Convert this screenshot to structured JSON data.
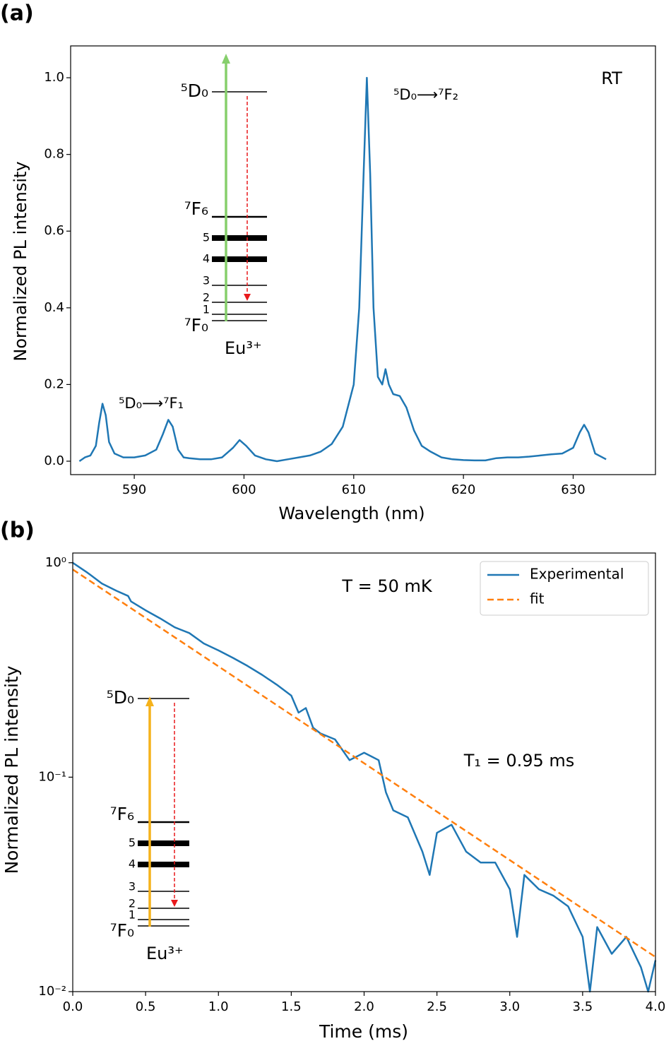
{
  "chart_data": [
    {
      "type": "line",
      "label": "(a)",
      "xlabel": "Wavelength (nm)",
      "ylabel": "Normalized PL intensity",
      "color": "#1f77b4",
      "x": [
        585.0,
        585.5,
        586.0,
        586.5,
        586.8,
        587.1,
        587.4,
        587.7,
        588.2,
        589,
        590,
        591,
        592,
        592.6,
        593.1,
        593.5,
        594,
        594.5,
        595,
        596,
        597,
        598,
        599,
        599.6,
        600.2,
        601,
        602,
        603,
        604,
        605,
        606,
        607,
        608,
        609,
        610,
        610.5,
        610.9,
        611.2,
        611.5,
        611.8,
        612.2,
        612.6,
        612.9,
        613.2,
        613.6,
        614.2,
        614.8,
        615.5,
        616.2,
        617,
        618,
        619,
        620,
        621,
        622,
        623,
        624,
        625,
        626,
        627,
        628,
        629,
        630,
        630.6,
        631,
        631.4,
        632,
        633
      ],
      "values": [
        0.0,
        0.01,
        0.015,
        0.04,
        0.1,
        0.15,
        0.12,
        0.05,
        0.02,
        0.01,
        0.01,
        0.015,
        0.03,
        0.07,
        0.108,
        0.09,
        0.03,
        0.01,
        0.008,
        0.005,
        0.005,
        0.01,
        0.035,
        0.055,
        0.04,
        0.015,
        0.005,
        0.0,
        0.005,
        0.01,
        0.015,
        0.025,
        0.045,
        0.09,
        0.2,
        0.4,
        0.75,
        1.0,
        0.75,
        0.4,
        0.22,
        0.2,
        0.24,
        0.2,
        0.175,
        0.17,
        0.14,
        0.08,
        0.04,
        0.025,
        0.01,
        0.005,
        0.003,
        0.002,
        0.002,
        0.008,
        0.01,
        0.01,
        0.012,
        0.015,
        0.018,
        0.02,
        0.035,
        0.075,
        0.095,
        0.075,
        0.02,
        0.005
      ],
      "xlim": [
        584.2,
        637.5
      ],
      "ylim": [
        -0.035,
        1.083
      ],
      "xticks": [
        590,
        600,
        610,
        620,
        630
      ],
      "yticks": [
        {
          "value": 0,
          "label": "0.0"
        },
        {
          "value": 0.2,
          "label": "0.2"
        },
        {
          "value": 0.4,
          "label": "0.4"
        },
        {
          "value": 0.6,
          "label": "0.6"
        },
        {
          "value": 0.8,
          "label": "0.8"
        },
        {
          "value": 1.0,
          "label": "1.0"
        }
      ],
      "annotations": [
        "RT",
        "⁵D₀⟶⁷F₂",
        "⁵D₀⟶⁷F₁"
      ],
      "inset": {
        "levels": [
          "⁵D₀",
          "⁷F₆",
          "5",
          "4",
          "3",
          "2",
          "1",
          "⁷F₀"
        ],
        "ion": "Eu³⁺",
        "pump_color": "#86cf6c",
        "emission_color": "#e8191c"
      }
    },
    {
      "type": "line",
      "label": "(b)",
      "xlabel": "Time (ms)",
      "ylabel": "Normalized PL intensity",
      "yscale": "log",
      "legend": "upper right",
      "series": [
        {
          "name": "Experimental",
          "color": "#1f77b4",
          "dash": false,
          "x": [
            0,
            0.1,
            0.2,
            0.3,
            0.38,
            0.4,
            0.5,
            0.6,
            0.7,
            0.8,
            0.9,
            1.0,
            1.1,
            1.2,
            1.3,
            1.4,
            1.5,
            1.55,
            1.6,
            1.65,
            1.7,
            1.8,
            1.9,
            2.0,
            2.05,
            2.1,
            2.15,
            2.2,
            2.3,
            2.4,
            2.45,
            2.5,
            2.6,
            2.7,
            2.8,
            2.9,
            3.0,
            3.05,
            3.1,
            3.2,
            3.3,
            3.4,
            3.5,
            3.55,
            3.6,
            3.7,
            3.8,
            3.9,
            3.95,
            4.0
          ],
          "values": [
            1.0,
            0.9,
            0.8,
            0.74,
            0.7,
            0.66,
            0.6,
            0.55,
            0.5,
            0.47,
            0.42,
            0.39,
            0.36,
            0.33,
            0.3,
            0.27,
            0.24,
            0.2,
            0.21,
            0.17,
            0.16,
            0.15,
            0.12,
            0.13,
            0.125,
            0.12,
            0.085,
            0.07,
            0.065,
            0.045,
            0.035,
            0.055,
            0.06,
            0.045,
            0.04,
            0.04,
            0.03,
            0.018,
            0.035,
            0.03,
            0.028,
            0.025,
            0.018,
            0.01,
            0.02,
            0.015,
            0.018,
            0.013,
            0.01,
            0.014
          ]
        },
        {
          "name": "fit",
          "color": "#ff7f0e",
          "dash": true,
          "x": [
            0,
            4
          ],
          "values": [
            0.93,
            0.0145
          ]
        }
      ],
      "xlim": [
        0,
        4
      ],
      "ylim": [
        0.01,
        1.11
      ],
      "xticks": [
        {
          "value": 0,
          "label": "0.0"
        },
        {
          "value": 0.5,
          "label": "0.5"
        },
        {
          "value": 1,
          "label": "1.0"
        },
        {
          "value": 1.5,
          "label": "1.5"
        },
        {
          "value": 2,
          "label": "2.0"
        },
        {
          "value": 2.5,
          "label": "2.5"
        },
        {
          "value": 3,
          "label": "3.0"
        },
        {
          "value": 3.5,
          "label": "3.5"
        },
        {
          "value": 4,
          "label": "4.0"
        }
      ],
      "yticks": [
        {
          "value": 0.01,
          "label": "10⁻²"
        },
        {
          "value": 0.1,
          "label": "10⁻¹"
        },
        {
          "value": 1,
          "label": "10⁰"
        }
      ],
      "annotations": [
        "T = 50 mK",
        "T₁ = 0.95 ms"
      ],
      "inset": {
        "levels": [
          "⁵D₀",
          "⁷F₆",
          "5",
          "4",
          "3",
          "2",
          "1",
          "⁷F₀"
        ],
        "ion": "Eu³⁺",
        "pump_color": "#f5b21b",
        "emission_color": "#e8191c"
      }
    }
  ]
}
